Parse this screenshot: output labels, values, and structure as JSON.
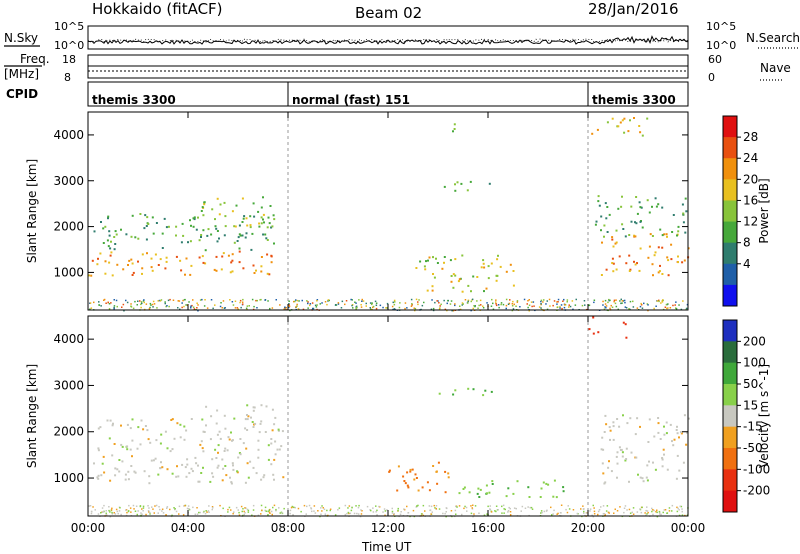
{
  "header": {
    "title": "Hokkaido (fitACF)",
    "beam": "Beam 02",
    "date": "28/Jan/2016"
  },
  "top_panels": {
    "nsky_label": "N.Sky",
    "nsearch_label": "N.Search",
    "freq_label_1": "Freq.",
    "freq_label_2": "[MHz]",
    "nave_label": "Nave",
    "cpid_label": "CPID",
    "noise_left_ticks": [
      "10^5",
      "10^0"
    ],
    "noise_right_ticks": [
      "10^5",
      "10^0"
    ],
    "freq_ticks": [
      "18",
      "8"
    ],
    "nave_ticks": [
      "60",
      "0"
    ]
  },
  "cpid_segments": [
    {
      "label": "themis 3300",
      "start_hour": 0,
      "end_hour": 8
    },
    {
      "label": "normal (fast) 151",
      "start_hour": 8,
      "end_hour": 20
    },
    {
      "label": "themis 3300",
      "start_hour": 20,
      "end_hour": 24
    }
  ],
  "chart_data": [
    {
      "type": "heatmap",
      "parameter": "Power",
      "colorbar_label": "Power [dB]",
      "ylabel": "Slant Range [km]",
      "xlabel": "Time UT",
      "x_ticks": [
        "00:00",
        "04:00",
        "08:00",
        "12:00",
        "16:00",
        "20:00",
        "00:00"
      ],
      "y_ticks": [
        "1000",
        "2000",
        "3000",
        "4000"
      ],
      "ylim": [
        180,
        4500
      ],
      "xlim_hours": [
        0,
        24
      ],
      "colorbar_ticks": [
        "4",
        "8",
        "12",
        "16",
        "20",
        "24",
        "28"
      ],
      "colorbar_colors": [
        "#1010ee",
        "#1f5fa8",
        "#2f7d6e",
        "#46a83a",
        "#88c43a",
        "#e8c020",
        "#f0900d",
        "#e85010",
        "#e01010"
      ],
      "echo_regions": [
        {
          "t0": 0.0,
          "t1": 7.8,
          "r0": 950,
          "r1": 1500,
          "level": 26
        },
        {
          "t0": 0.2,
          "t1": 7.6,
          "r0": 1500,
          "r1": 2300,
          "level": 14
        },
        {
          "t0": 4.5,
          "t1": 7.5,
          "r0": 2000,
          "r1": 2700,
          "level": 18
        },
        {
          "t0": 13.0,
          "t1": 17.0,
          "r0": 600,
          "r1": 1400,
          "level": 20
        },
        {
          "t0": 14.0,
          "t1": 16.5,
          "r0": 2800,
          "r1": 3000,
          "level": 16
        },
        {
          "t0": 14.3,
          "t1": 14.7,
          "r0": 3800,
          "r1": 4300,
          "level": 14
        },
        {
          "t0": 20.5,
          "t1": 24.0,
          "r0": 950,
          "r1": 1900,
          "level": 26
        },
        {
          "t0": 20.2,
          "t1": 24.0,
          "r0": 1800,
          "r1": 2700,
          "level": 14
        },
        {
          "t0": 20.0,
          "t1": 22.5,
          "r0": 4000,
          "r1": 4400,
          "level": 22
        }
      ]
    },
    {
      "type": "heatmap",
      "parameter": "Velocity",
      "colorbar_label": "Velocity [m s^-1]",
      "ylabel": "Slant Range [km]",
      "xlabel": "Time UT",
      "x_ticks": [
        "00:00",
        "04:00",
        "08:00",
        "12:00",
        "16:00",
        "20:00",
        "00:00"
      ],
      "y_ticks": [
        "1000",
        "2000",
        "3000",
        "4000"
      ],
      "ylim": [
        180,
        4500
      ],
      "xlim_hours": [
        0,
        24
      ],
      "colorbar_ticks": [
        "200",
        "100",
        "50",
        "15",
        "-15",
        "-50",
        "-100",
        "-200"
      ],
      "colorbar_colors": [
        "#1e2fbf",
        "#2a6d3c",
        "#3fa83a",
        "#88d04a",
        "#c8c8c0",
        "#f0a020",
        "#f07010",
        "#e83010",
        "#e01010"
      ],
      "echo_regions": [
        {
          "t0": 0.0,
          "t1": 7.8,
          "r0": 900,
          "r1": 2300,
          "level": 0
        },
        {
          "t0": 4.5,
          "t1": 7.5,
          "r0": 2000,
          "r1": 2600,
          "level": 0
        },
        {
          "t0": 12.0,
          "t1": 14.5,
          "r0": 700,
          "r1": 1400,
          "level": -60
        },
        {
          "t0": 14.5,
          "t1": 19.0,
          "r0": 600,
          "r1": 1000,
          "level": 40
        },
        {
          "t0": 14.0,
          "t1": 16.5,
          "r0": 2800,
          "r1": 3000,
          "level": 50
        },
        {
          "t0": 20.5,
          "t1": 24.0,
          "r0": 900,
          "r1": 2400,
          "level": 0
        },
        {
          "t0": 20.0,
          "t1": 20.6,
          "r0": 4100,
          "r1": 4500,
          "level": -150
        },
        {
          "t0": 21.3,
          "t1": 21.8,
          "r0": 4000,
          "r1": 4400,
          "level": -200
        }
      ]
    }
  ]
}
